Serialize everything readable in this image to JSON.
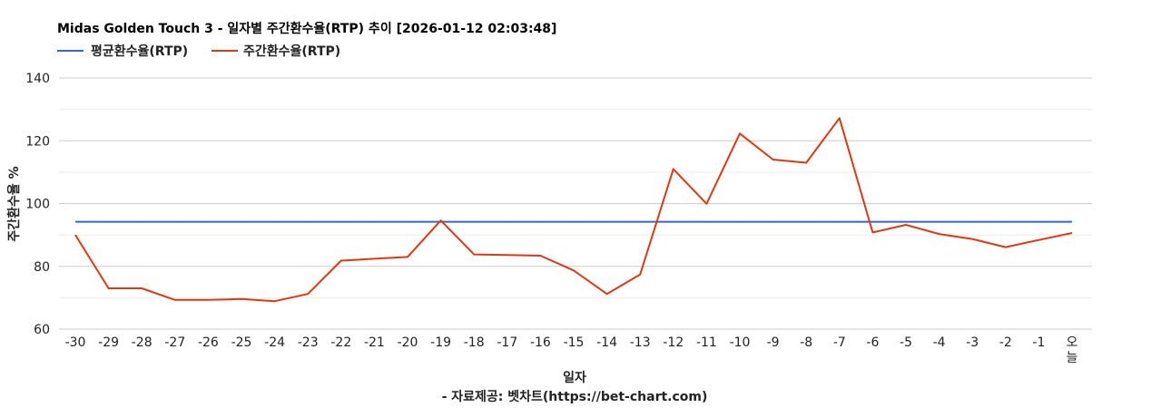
{
  "chart_data": {
    "type": "line",
    "title": "Midas Golden Touch 3 - 일자별 주간환수율(RTP) 추이 [2026-01-12 02:03:48]",
    "xlabel": "일자",
    "ylabel": "주간환수율 %",
    "source": "- 자료제공: 벳차트(https://bet-chart.com)",
    "legend_position": "top-left",
    "grid": true,
    "ylim": [
      60,
      140
    ],
    "yticks": [
      "60",
      "80",
      "100",
      "120",
      "140"
    ],
    "categories": [
      "-30",
      "-29",
      "-28",
      "-27",
      "-26",
      "-25",
      "-24",
      "-23",
      "-22",
      "-21",
      "-20",
      "-19",
      "-18",
      "-17",
      "-16",
      "-15",
      "-14",
      "-13",
      "-12",
      "-11",
      "-10",
      "-9",
      "-8",
      "-7",
      "-6",
      "-5",
      "-4",
      "-3",
      "-2",
      "-1",
      "오늘"
    ],
    "series": [
      {
        "name": "평균환수율(RTP)",
        "color": "#3366cc",
        "values": [
          94.2,
          94.2,
          94.2,
          94.2,
          94.2,
          94.2,
          94.2,
          94.2,
          94.2,
          94.2,
          94.2,
          94.2,
          94.2,
          94.2,
          94.2,
          94.2,
          94.2,
          94.2,
          94.2,
          94.2,
          94.2,
          94.2,
          94.2,
          94.2,
          94.2,
          94.2,
          94.2,
          94.2,
          94.2,
          94.2,
          94.2
        ]
      },
      {
        "name": "주간환수율(RTP)",
        "color": "#dc3912",
        "values": [
          90.0,
          73.0,
          73.0,
          69.3,
          69.3,
          69.6,
          68.9,
          71.2,
          81.8,
          82.4,
          83.0,
          94.6,
          83.8,
          83.6,
          83.4,
          78.7,
          71.2,
          77.4,
          111.0,
          99.9,
          122.3,
          114.0,
          113.0,
          127.2,
          90.8,
          93.2,
          90.3,
          88.7,
          86.1,
          88.4,
          90.6
        ]
      }
    ]
  }
}
